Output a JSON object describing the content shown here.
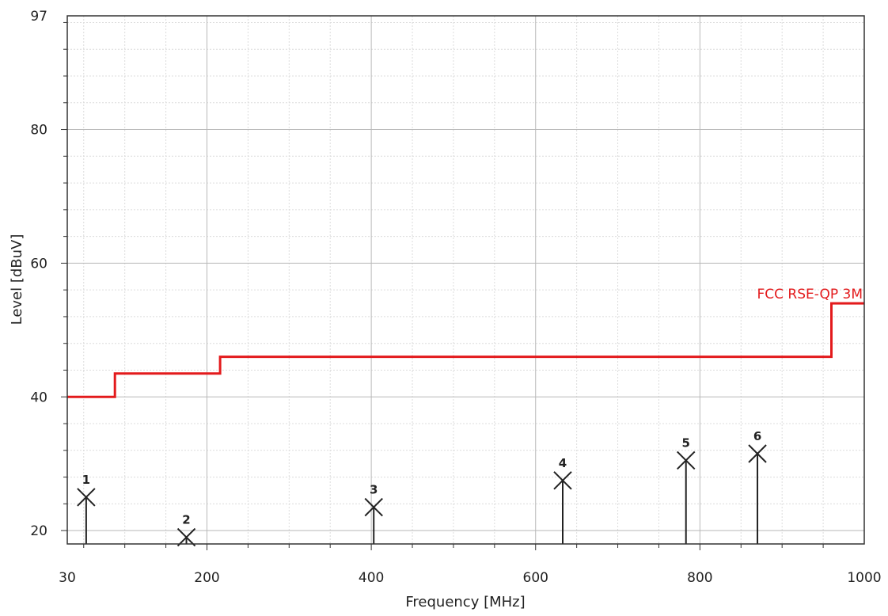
{
  "chart_data": {
    "type": "line",
    "xlabel": "Frequency [MHz]",
    "ylabel": "Level [dBuV]",
    "xlim": [
      30,
      1000
    ],
    "ylim": [
      18,
      97
    ],
    "x_ticks": [
      "30",
      "200",
      "400",
      "600",
      "800",
      "1000"
    ],
    "y_ticks": [
      "20",
      "40",
      "60",
      "80",
      "97"
    ],
    "grid": true,
    "colors": {
      "limit": "#e31a1c",
      "marker": "#222222",
      "grid_major": "#b8b8b8",
      "grid_minor": "#dcdcdc"
    },
    "series": [
      {
        "name": "FCC RSE-QP 3M",
        "kind": "limit-line",
        "x": [
          30,
          88,
          88,
          216,
          216,
          960,
          960,
          1000
        ],
        "y": [
          40,
          40,
          43.5,
          43.5,
          46,
          46,
          54,
          54
        ]
      }
    ],
    "markers": [
      {
        "label": "1",
        "x": 53,
        "y": 25.0
      },
      {
        "label": "2",
        "x": 175,
        "y": 19.0
      },
      {
        "label": "3",
        "x": 403,
        "y": 23.5
      },
      {
        "label": "4",
        "x": 633,
        "y": 27.5
      },
      {
        "label": "5",
        "x": 783,
        "y": 30.5
      },
      {
        "label": "6",
        "x": 870,
        "y": 31.5
      }
    ]
  }
}
